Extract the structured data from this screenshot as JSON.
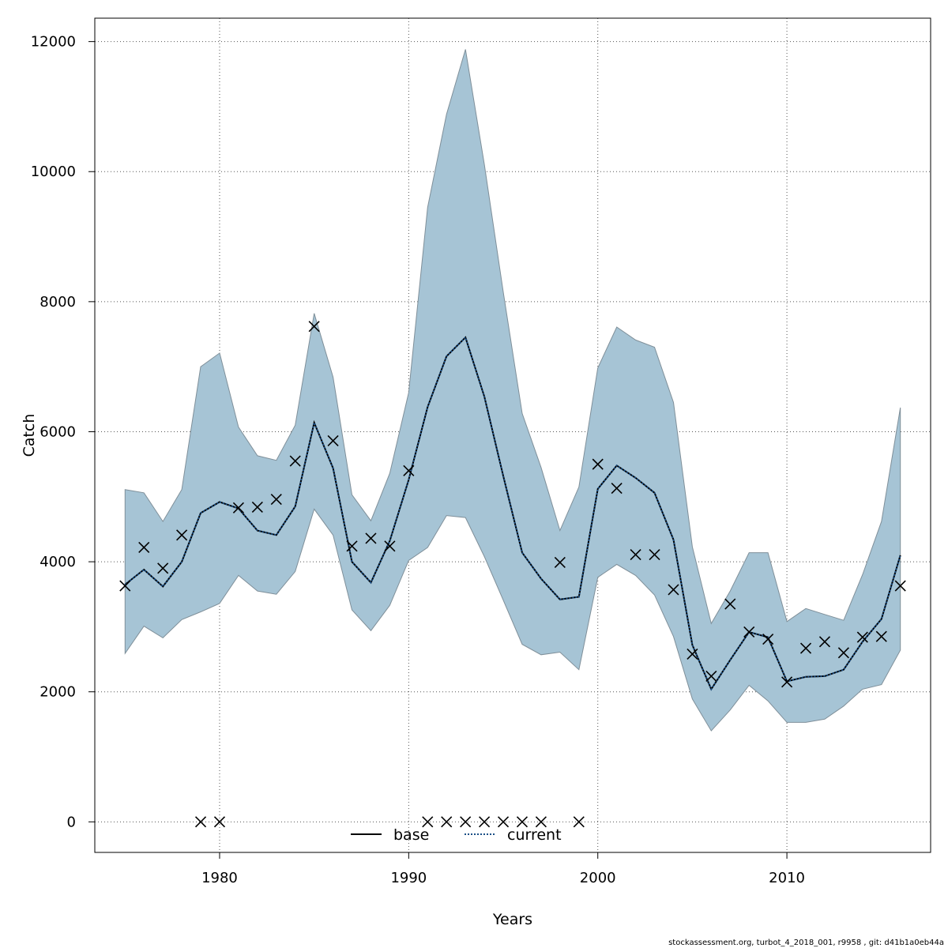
{
  "chart_data": {
    "type": "line",
    "xlabel": "Years",
    "ylabel": "Catch",
    "xlim": [
      1973.4,
      2017.6
    ],
    "ylim": [
      -470,
      12360
    ],
    "x_ticks": [
      1980,
      1990,
      2000,
      2010
    ],
    "x_tick_labels": [
      "1980",
      "1990",
      "2000",
      "2010"
    ],
    "y_ticks": [
      0,
      2000,
      4000,
      6000,
      8000,
      10000,
      12000
    ],
    "y_tick_labels": [
      "0",
      "2000",
      "4000",
      "6000",
      "8000",
      "10000",
      "12000"
    ],
    "grid": true,
    "legend_position": "bottom",
    "x": [
      1975,
      1976,
      1977,
      1978,
      1979,
      1980,
      1981,
      1982,
      1983,
      1984,
      1985,
      1986,
      1987,
      1988,
      1989,
      1990,
      1991,
      1992,
      1993,
      1994,
      1995,
      1996,
      1997,
      1998,
      1999,
      2000,
      2001,
      2002,
      2003,
      2004,
      2005,
      2006,
      2007,
      2008,
      2009,
      2010,
      2011,
      2012,
      2013,
      2014,
      2015,
      2016
    ],
    "series": [
      {
        "name": "base",
        "style": "solid",
        "color": "#000000",
        "values": [
          3650,
          3880,
          3620,
          4000,
          4750,
          4920,
          4820,
          4480,
          4410,
          4850,
          6140,
          5440,
          4000,
          3680,
          4320,
          5260,
          6380,
          7160,
          7450,
          6540,
          5320,
          4140,
          3740,
          3420,
          3460,
          5120,
          5480,
          5290,
          5060,
          4340,
          2720,
          2040,
          2490,
          2920,
          2840,
          2160,
          2230,
          2240,
          2340,
          2770,
          3120,
          4100
        ]
      },
      {
        "name": "current",
        "style": "dotted",
        "color": "#1a4f86",
        "values": [
          3650,
          3880,
          3620,
          4000,
          4750,
          4920,
          4820,
          4480,
          4410,
          4850,
          6140,
          5440,
          4000,
          3680,
          4320,
          5260,
          6380,
          7160,
          7450,
          6540,
          5320,
          4140,
          3740,
          3420,
          3460,
          5120,
          5480,
          5290,
          5060,
          4340,
          2720,
          2040,
          2490,
          2920,
          2840,
          2160,
          2230,
          2240,
          2340,
          2770,
          3120,
          4100
        ]
      }
    ],
    "band": {
      "color": "#a6c4d5",
      "upper": [
        5110,
        5060,
        4620,
        5110,
        7000,
        7210,
        6070,
        5630,
        5560,
        6100,
        7820,
        6840,
        5030,
        4630,
        5360,
        6600,
        9450,
        10880,
        11880,
        10110,
        8150,
        6280,
        5450,
        4480,
        5150,
        6980,
        7610,
        7410,
        7300,
        6450,
        4230,
        3050,
        3550,
        4140,
        4140,
        3080,
        3280,
        3190,
        3100,
        3800,
        4620,
        6370
      ],
      "lower": [
        2590,
        3010,
        2830,
        3110,
        3230,
        3360,
        3790,
        3550,
        3500,
        3850,
        4810,
        4410,
        3260,
        2940,
        3330,
        4020,
        4220,
        4710,
        4680,
        4080,
        3410,
        2730,
        2570,
        2610,
        2340,
        3760,
        3960,
        3790,
        3490,
        2850,
        1890,
        1400,
        1720,
        2100,
        1860,
        1530,
        1530,
        1580,
        1780,
        2040,
        2110,
        2640
      ]
    },
    "observed": {
      "marker": "x",
      "x": [
        1975,
        1976,
        1977,
        1978,
        1979,
        1980,
        1981,
        1982,
        1983,
        1984,
        1985,
        1986,
        1987,
        1988,
        1989,
        1990,
        1991,
        1992,
        1993,
        1994,
        1995,
        1996,
        1997,
        1998,
        1999,
        2000,
        2001,
        2002,
        2003,
        2004,
        2005,
        2006,
        2007,
        2008,
        2009,
        2010,
        2011,
        2012,
        2013,
        2014,
        2015,
        2016
      ],
      "values": [
        3630,
        4220,
        3900,
        4410,
        0,
        0,
        4830,
        4840,
        4960,
        5550,
        7620,
        5860,
        4240,
        4360,
        4240,
        5400,
        0,
        0,
        0,
        0,
        0,
        0,
        0,
        3990,
        0,
        5500,
        5130,
        4110,
        4110,
        3570,
        2580,
        2240,
        3350,
        2920,
        2810,
        2150,
        2670,
        2770,
        2600,
        2840,
        2850,
        3630
      ]
    }
  },
  "footer": {
    "text": "stockassessment.org, turbot_4_2018_001, r9958 , git: d41b1a0eb44a"
  }
}
